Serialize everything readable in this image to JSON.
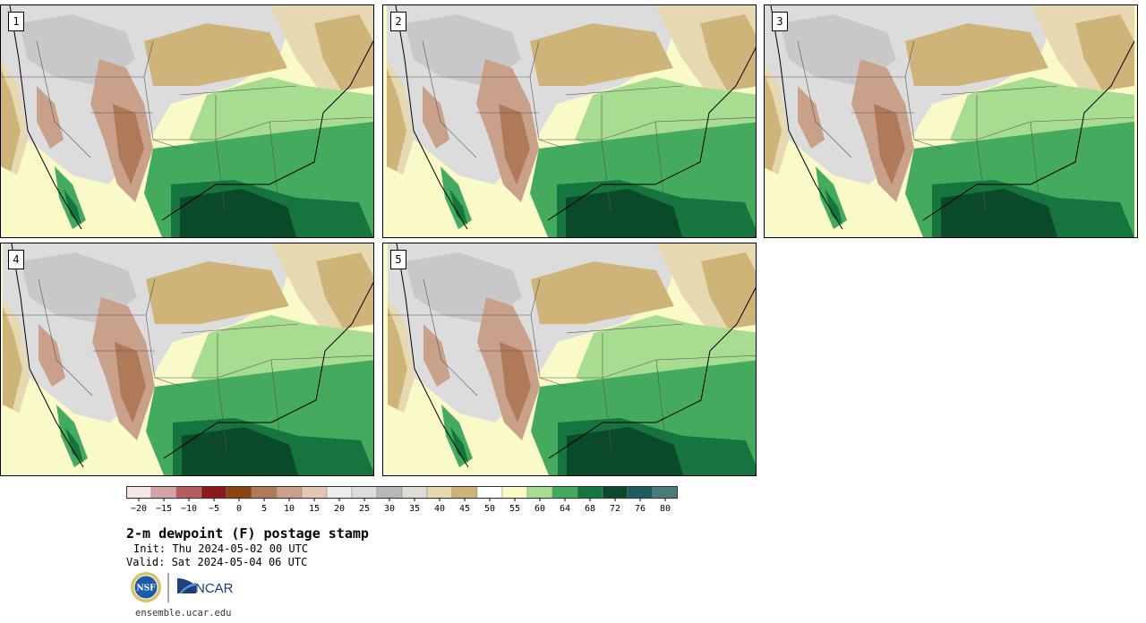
{
  "panels": [
    {
      "label": "1"
    },
    {
      "label": "2"
    },
    {
      "label": "3"
    },
    {
      "label": "4"
    },
    {
      "label": "5"
    }
  ],
  "legend": {
    "colors": [
      "#f5e6e6",
      "#d4a3a3",
      "#b55c5c",
      "#8c1a1a",
      "#8b4513",
      "#b07a58",
      "#c9a08a",
      "#e2c7b7",
      "#ececec",
      "#dcdcdc",
      "#b8b8b8",
      "#dedcd3",
      "#e6d8b0",
      "#cfb47a",
      "#ffffff",
      "#fafac8",
      "#a8dc90",
      "#44aa5e",
      "#16743e",
      "#0a4a2a",
      "#1f5a5e",
      "#4a7a7a"
    ],
    "ticks": [
      "−20",
      "−15",
      "−10",
      "−5",
      "0",
      "5",
      "10",
      "15",
      "20",
      "25",
      "30",
      "35",
      "40",
      "45",
      "50",
      "55",
      "60",
      "64",
      "68",
      "72",
      "76",
      "80"
    ]
  },
  "title": "2-m dewpoint (F) postage stamp",
  "init": "Init: Thu 2024-05-02 00 UTC",
  "valid": "Valid: Sat 2024-05-04 06 UTC",
  "logos": {
    "nsf": "NSF",
    "ncar": "NCAR"
  },
  "site": "ensemble.ucar.edu"
}
